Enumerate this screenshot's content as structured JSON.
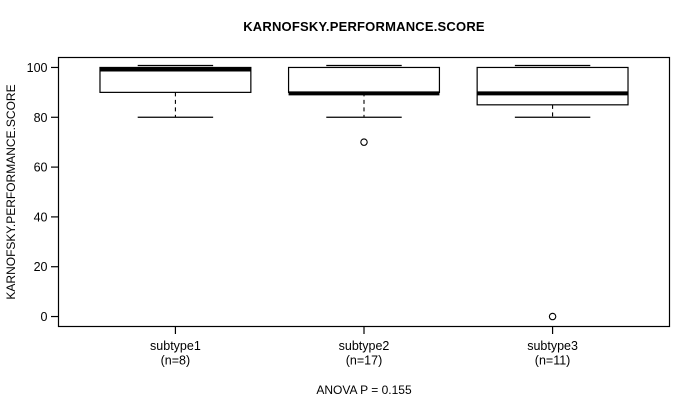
{
  "chart_data": {
    "type": "boxplot",
    "title": "KARNOFSKY.PERFORMANCE.SCORE",
    "ylabel": "KARNOFSKY.PERFORMANCE.SCORE",
    "xlabel": "ANOVA P = 0.155",
    "ylim": [
      0,
      100
    ],
    "yticks": [
      0,
      20,
      40,
      60,
      80,
      100
    ],
    "grid": false,
    "legend": "none",
    "groups": [
      {
        "label": "subtype1",
        "n": 8,
        "n_label": "(n=8)",
        "whisker_low": 80,
        "q1": 90,
        "median": 100,
        "q3": 100,
        "whisker_high": 100,
        "outliers": []
      },
      {
        "label": "subtype2",
        "n": 17,
        "n_label": "(n=17)",
        "whisker_low": 80,
        "q1": 90,
        "median": 90,
        "q3": 100,
        "whisker_high": 100,
        "outliers": [
          70
        ]
      },
      {
        "label": "subtype3",
        "n": 11,
        "n_label": "(n=11)",
        "whisker_low": 80,
        "q1": 85,
        "median": 90,
        "q3": 100,
        "whisker_high": 100,
        "outliers": [
          0
        ]
      }
    ],
    "colors": {
      "line": "#000000",
      "box_fill": "#ffffff",
      "background": "#ffffff",
      "text": "#000000"
    }
  }
}
